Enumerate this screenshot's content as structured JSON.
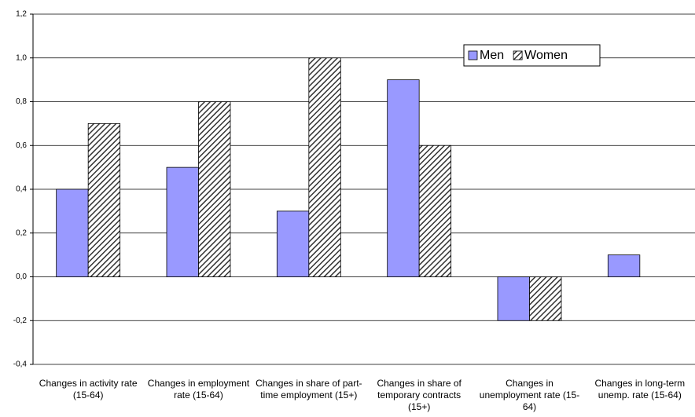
{
  "chart_data": {
    "type": "bar",
    "categories": [
      "Changes in activity rate (15-64)",
      "Changes in employment rate (15-64)",
      "Changes in share of part-time employment (15+)",
      "Changes in share of temporary contracts (15+)",
      "Changes in unemployment rate (15-64)",
      "Changes in long-term unemp. rate (15-64)"
    ],
    "series": [
      {
        "name": "Men",
        "color": "#9999ff",
        "values": [
          0.4,
          0.5,
          0.3,
          0.9,
          -0.2,
          0.1
        ]
      },
      {
        "name": "Women",
        "color": "#333333",
        "pattern": "hatch",
        "values": [
          0.7,
          0.8,
          1.0,
          0.6,
          -0.2,
          null
        ]
      }
    ],
    "ylim": [
      -0.4,
      1.2
    ],
    "yticks": [
      {
        "value": -0.4,
        "label": "-0,4"
      },
      {
        "value": -0.2,
        "label": "-0,2"
      },
      {
        "value": 0,
        "label": "0,0"
      },
      {
        "value": 0.2,
        "label": "0,2"
      },
      {
        "value": 0.4,
        "label": "0,4"
      },
      {
        "value": 0.6,
        "label": "0,6"
      },
      {
        "value": 0.8,
        "label": "0,8"
      },
      {
        "value": 1.0,
        "label": "1,0"
      },
      {
        "value": 1.2,
        "label": "1,2"
      }
    ],
    "grid": true,
    "legend": "upper right"
  }
}
